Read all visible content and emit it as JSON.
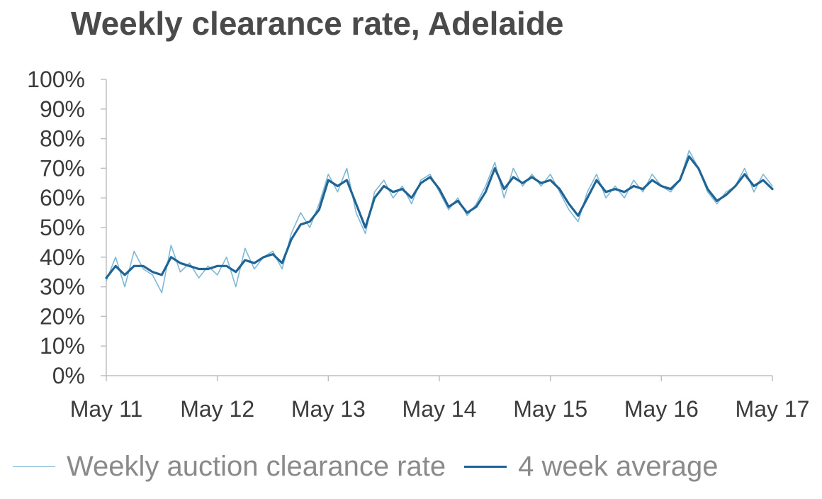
{
  "chart_data": {
    "type": "line",
    "title": "Weekly clearance rate, Adelaide",
    "xlabel": "",
    "ylabel": "",
    "x_range": [
      "May 11",
      "May 17"
    ],
    "xticks": [
      "May 11",
      "May 12",
      "May 13",
      "May 14",
      "May 15",
      "May 16",
      "May 17"
    ],
    "ylim": [
      0,
      100
    ],
    "yticks": [
      0,
      10,
      20,
      30,
      40,
      50,
      60,
      70,
      80,
      90,
      100
    ],
    "ytick_labels": [
      "0%",
      "10%",
      "20%",
      "30%",
      "40%",
      "50%",
      "60%",
      "70%",
      "80%",
      "90%",
      "100%"
    ],
    "grid": false,
    "legend_position": "bottom",
    "series": [
      {
        "name": "Weekly auction clearance rate",
        "color": "#7fb8d6",
        "points": [
          [
            "May 11",
            32
          ],
          [
            "Jun 11",
            40
          ],
          [
            "Jul 11",
            30
          ],
          [
            "Aug 11",
            42
          ],
          [
            "Sep 11",
            36
          ],
          [
            "Oct 11",
            34
          ],
          [
            "Nov 11",
            28
          ],
          [
            "Dec 11",
            44
          ],
          [
            "Jan 12",
            35
          ],
          [
            "Feb 12",
            38
          ],
          [
            "Mar 12",
            33
          ],
          [
            "Apr 12",
            37
          ],
          [
            "May 12",
            34
          ],
          [
            "Jun 12",
            40
          ],
          [
            "Jul 12",
            30
          ],
          [
            "Aug 12",
            43
          ],
          [
            "Sep 12",
            36
          ],
          [
            "Oct 12",
            40
          ],
          [
            "Nov 12",
            42
          ],
          [
            "Dec 12",
            36
          ],
          [
            "Jan 13",
            48
          ],
          [
            "Feb 13",
            55
          ],
          [
            "Mar 13",
            50
          ],
          [
            "Apr 13",
            58
          ],
          [
            "May 13",
            68
          ],
          [
            "Jun 13",
            62
          ],
          [
            "Jul 13",
            70
          ],
          [
            "Aug 13",
            55
          ],
          [
            "Sep 13",
            48
          ],
          [
            "Oct 13",
            62
          ],
          [
            "Nov 13",
            66
          ],
          [
            "Dec 13",
            60
          ],
          [
            "Jan 14",
            64
          ],
          [
            "Feb 14",
            58
          ],
          [
            "Mar 14",
            66
          ],
          [
            "Apr 14",
            68
          ],
          [
            "May 14",
            62
          ],
          [
            "Jun 14",
            56
          ],
          [
            "Jul 14",
            60
          ],
          [
            "Aug 14",
            54
          ],
          [
            "Sep 14",
            58
          ],
          [
            "Oct 14",
            64
          ],
          [
            "Nov 14",
            72
          ],
          [
            "Dec 14",
            60
          ],
          [
            "Jan 15",
            70
          ],
          [
            "Feb 15",
            64
          ],
          [
            "Mar 15",
            68
          ],
          [
            "Apr 15",
            64
          ],
          [
            "May 15",
            68
          ],
          [
            "Jun 15",
            62
          ],
          [
            "Jul 15",
            56
          ],
          [
            "Aug 15",
            52
          ],
          [
            "Sep 15",
            62
          ],
          [
            "Oct 15",
            68
          ],
          [
            "Nov 15",
            60
          ],
          [
            "Dec 15",
            64
          ],
          [
            "Jan 16",
            60
          ],
          [
            "Feb 16",
            66
          ],
          [
            "Mar 16",
            62
          ],
          [
            "Apr 16",
            68
          ],
          [
            "May 16",
            64
          ],
          [
            "Jun 16",
            62
          ],
          [
            "Jul 16",
            66
          ],
          [
            "Aug 16",
            76
          ],
          [
            "Sep 16",
            70
          ],
          [
            "Oct 16",
            62
          ],
          [
            "Nov 16",
            58
          ],
          [
            "Dec 16",
            62
          ],
          [
            "Jan 17",
            64
          ],
          [
            "Feb 17",
            70
          ],
          [
            "Mar 17",
            62
          ],
          [
            "Apr 17",
            68
          ],
          [
            "May 17",
            64
          ]
        ]
      },
      {
        "name": "4 week average",
        "color": "#1f6495",
        "points": [
          [
            "May 11",
            33
          ],
          [
            "Jun 11",
            37
          ],
          [
            "Jul 11",
            34
          ],
          [
            "Aug 11",
            37
          ],
          [
            "Sep 11",
            37
          ],
          [
            "Oct 11",
            35
          ],
          [
            "Nov 11",
            34
          ],
          [
            "Dec 11",
            40
          ],
          [
            "Jan 12",
            38
          ],
          [
            "Feb 12",
            37
          ],
          [
            "Mar 12",
            36
          ],
          [
            "Apr 12",
            36
          ],
          [
            "May 12",
            37
          ],
          [
            "Jun 12",
            37
          ],
          [
            "Jul 12",
            35
          ],
          [
            "Aug 12",
            39
          ],
          [
            "Sep 12",
            38
          ],
          [
            "Oct 12",
            40
          ],
          [
            "Nov 12",
            41
          ],
          [
            "Dec 12",
            38
          ],
          [
            "Jan 13",
            46
          ],
          [
            "Feb 13",
            51
          ],
          [
            "Mar 13",
            52
          ],
          [
            "Apr 13",
            56
          ],
          [
            "May 13",
            66
          ],
          [
            "Jun 13",
            64
          ],
          [
            "Jul 13",
            66
          ],
          [
            "Aug 13",
            58
          ],
          [
            "Sep 13",
            50
          ],
          [
            "Oct 13",
            60
          ],
          [
            "Nov 13",
            64
          ],
          [
            "Dec 13",
            62
          ],
          [
            "Jan 14",
            63
          ],
          [
            "Feb 14",
            60
          ],
          [
            "Mar 14",
            65
          ],
          [
            "Apr 14",
            67
          ],
          [
            "May 14",
            63
          ],
          [
            "Jun 14",
            57
          ],
          [
            "Jul 14",
            59
          ],
          [
            "Aug 14",
            55
          ],
          [
            "Sep 14",
            57
          ],
          [
            "Oct 14",
            62
          ],
          [
            "Nov 14",
            70
          ],
          [
            "Dec 14",
            63
          ],
          [
            "Jan 15",
            67
          ],
          [
            "Feb 15",
            65
          ],
          [
            "Mar 15",
            67
          ],
          [
            "Apr 15",
            65
          ],
          [
            "May 15",
            66
          ],
          [
            "Jun 15",
            63
          ],
          [
            "Jul 15",
            58
          ],
          [
            "Aug 15",
            54
          ],
          [
            "Sep 15",
            60
          ],
          [
            "Oct 15",
            66
          ],
          [
            "Nov 15",
            62
          ],
          [
            "Dec 15",
            63
          ],
          [
            "Jan 16",
            62
          ],
          [
            "Feb 16",
            64
          ],
          [
            "Mar 16",
            63
          ],
          [
            "Apr 16",
            66
          ],
          [
            "May 16",
            64
          ],
          [
            "Jun 16",
            63
          ],
          [
            "Jul 16",
            66
          ],
          [
            "Aug 16",
            74
          ],
          [
            "Sep 16",
            70
          ],
          [
            "Oct 16",
            63
          ],
          [
            "Nov 16",
            59
          ],
          [
            "Dec 16",
            61
          ],
          [
            "Jan 17",
            64
          ],
          [
            "Feb 17",
            68
          ],
          [
            "Mar 17",
            64
          ],
          [
            "Apr 17",
            66
          ],
          [
            "May 17",
            63
          ]
        ]
      }
    ]
  }
}
